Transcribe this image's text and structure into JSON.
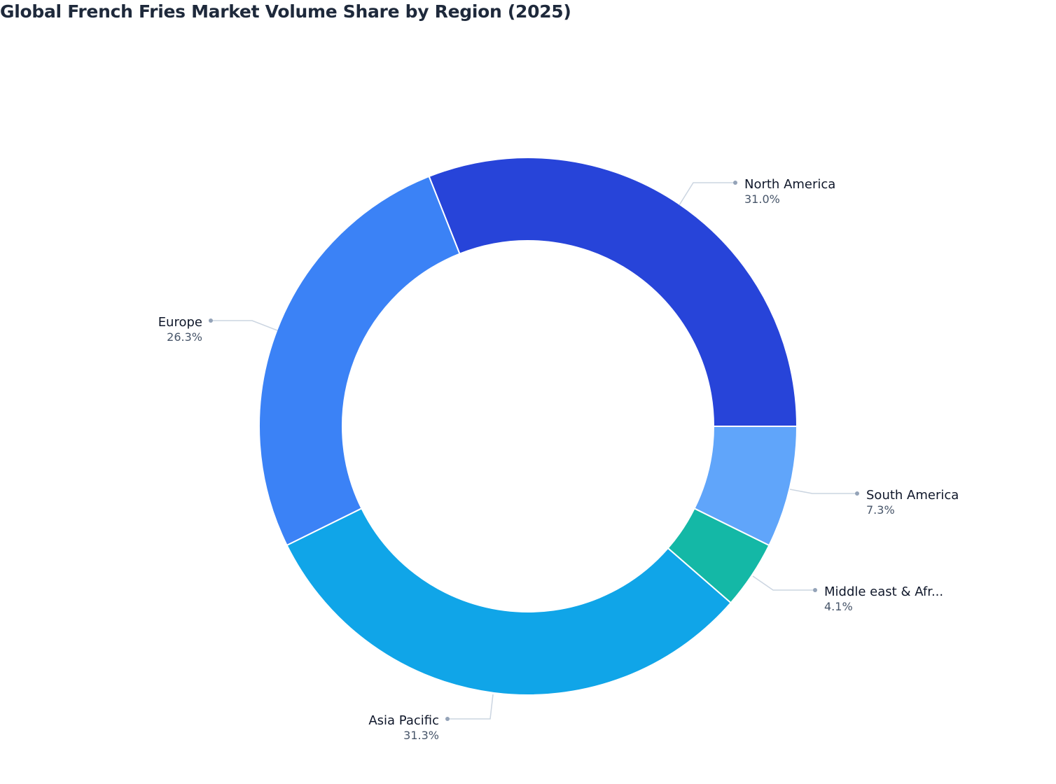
{
  "title": "Global French Fries Market Volume Share by Region (2025)",
  "chart_data": {
    "type": "pie",
    "subtype": "donut",
    "title": "Global French Fries Market Volume Share by Region (2025)",
    "categories": [
      "North America",
      "Europe",
      "Asia Pacific",
      "Middle east & Africa",
      "South America"
    ],
    "values": [
      31.0,
      26.3,
      31.3,
      4.1,
      7.3
    ],
    "unit": "%",
    "colors": [
      "#2744d9",
      "#3b82f6",
      "#10a5e8",
      "#14b8a6",
      "#60a5fa"
    ],
    "start_angle_deg": 0,
    "direction": "counterclockwise",
    "legend": "none (outside labels with leader lines)"
  },
  "labels": [
    {
      "name": "North America",
      "value": "31.0%"
    },
    {
      "name": "Europe",
      "value": "26.3%"
    },
    {
      "name": "Asia Pacific",
      "value": "31.3%"
    },
    {
      "name": "Middle east & Afr...",
      "value": "4.1%"
    },
    {
      "name": "South America",
      "value": "7.3%"
    }
  ]
}
